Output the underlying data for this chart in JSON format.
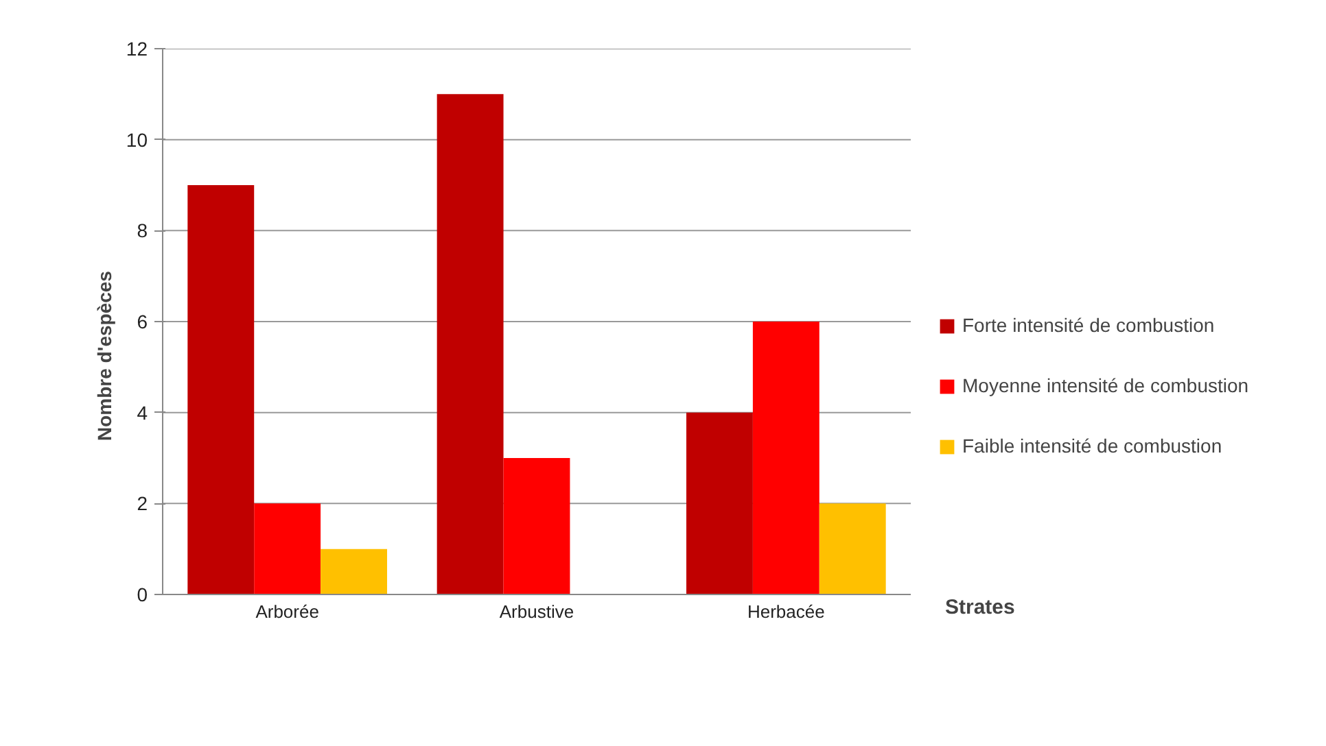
{
  "chart_data": {
    "type": "bar",
    "xlabel": "Strates",
    "ylabel": "Nombre d'espèces",
    "categories": [
      "Arborée",
      "Arbustive",
      "Herbacée"
    ],
    "series": [
      {
        "name": "Forte intensité de combustion",
        "color": "#c00000",
        "values": [
          9,
          11,
          4
        ]
      },
      {
        "name": "Moyenne intensité de combustion",
        "color": "#ff0000",
        "values": [
          2,
          3,
          6
        ]
      },
      {
        "name": "Faible intensité de combustion",
        "color": "#ffc000",
        "values": [
          1,
          0,
          2
        ]
      }
    ],
    "ylim": [
      0,
      12
    ],
    "yticks": [
      0,
      2,
      4,
      6,
      8,
      10,
      12
    ],
    "grid": "y",
    "legend": "right"
  }
}
